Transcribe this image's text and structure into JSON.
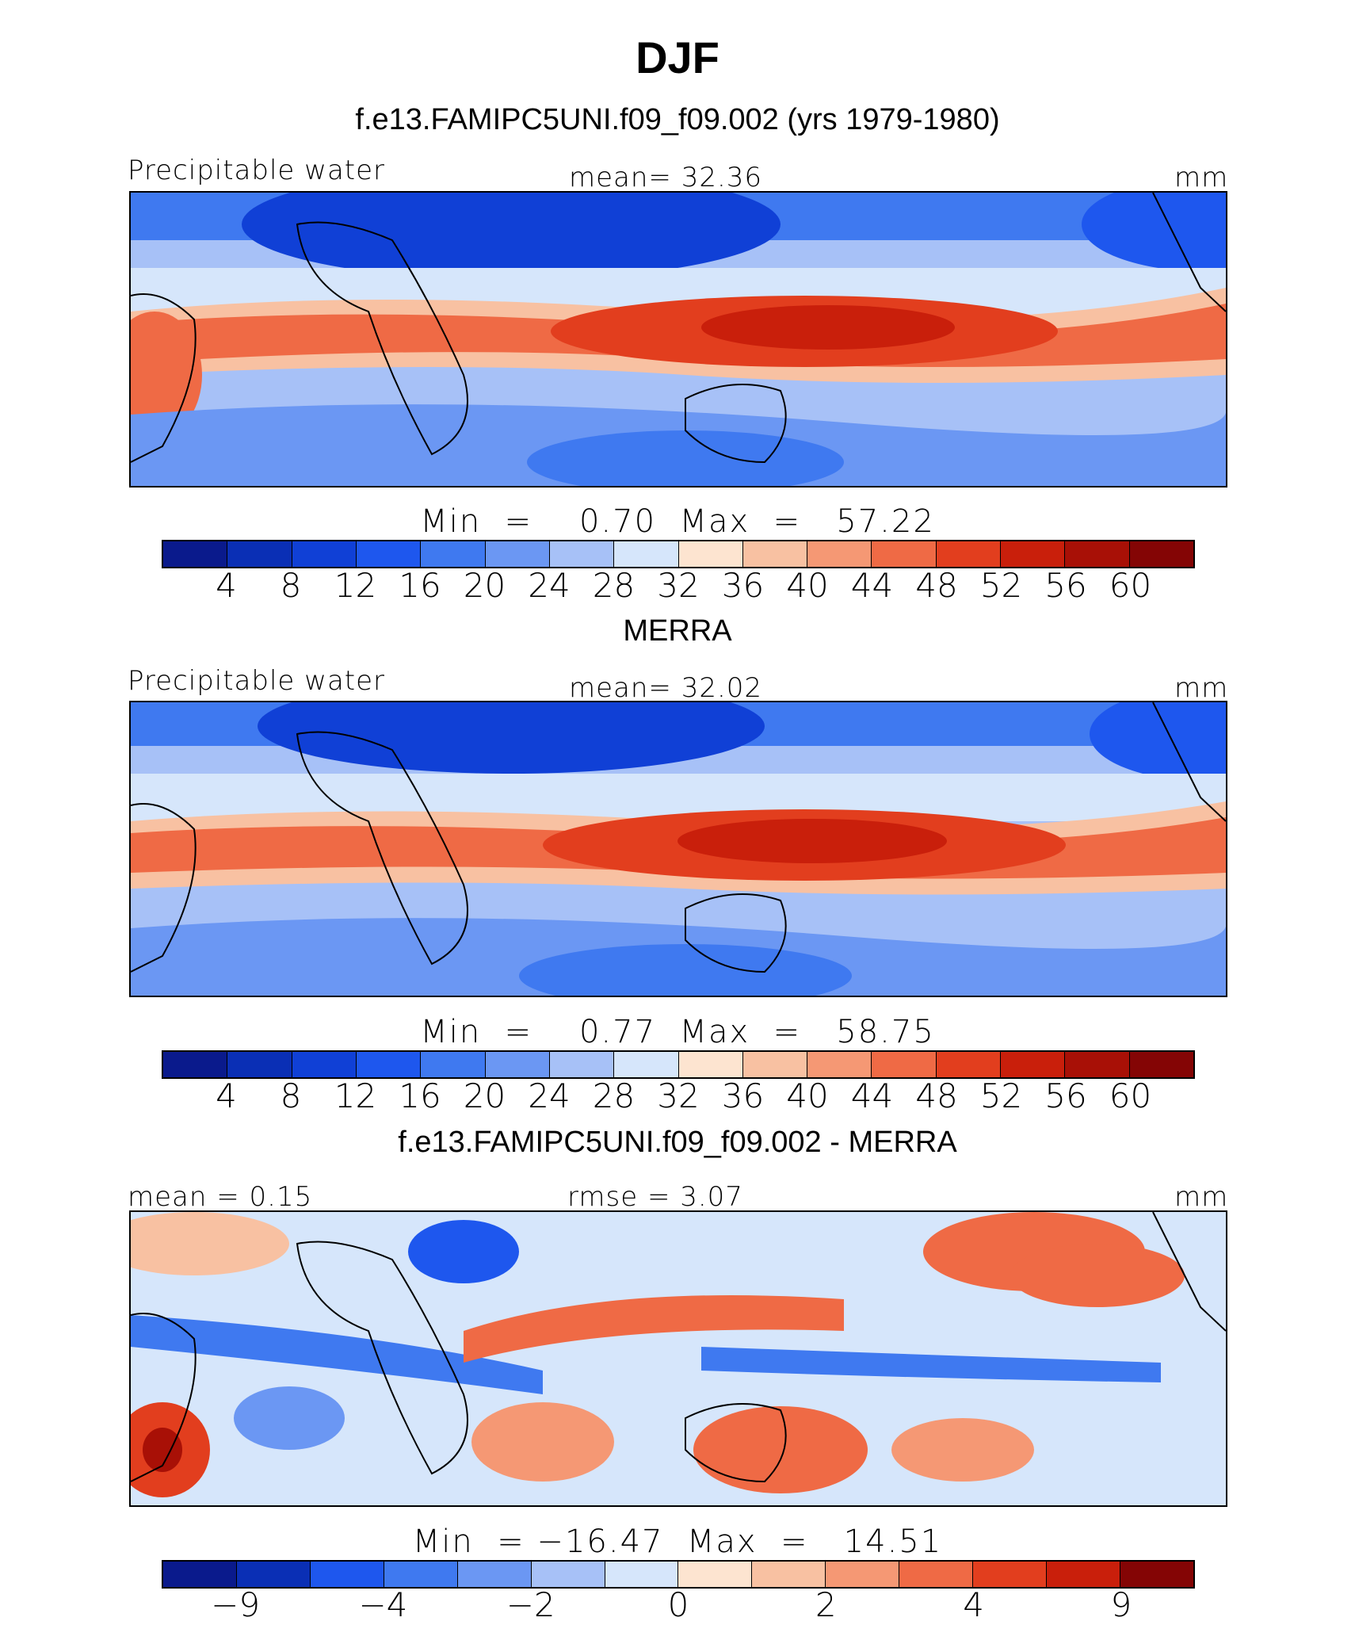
{
  "figure_title": "DJF",
  "panels": [
    {
      "title": "f.e13.FAMIPC5UNI.f09_f09.002 (yrs 1979-1980)",
      "left_label": "Precipitable water",
      "center_label": "mean=   32.36",
      "right_label": "mm",
      "stats": "Min  =    0.70  Max  =   57.22",
      "kind": "abs"
    },
    {
      "title": "MERRA",
      "left_label": "Precipitable water",
      "center_label": "mean=   32.02",
      "right_label": "mm",
      "stats": "Min  =    0.77  Max  =   58.75",
      "kind": "abs"
    },
    {
      "title": "f.e13.FAMIPC5UNI.f09_f09.002 - MERRA",
      "left_label": "mean  =    0.15",
      "center_label": "rmse  =    3.07",
      "right_label": "mm",
      "stats": "Min  = −16.47  Max  =   14.51",
      "kind": "diff"
    }
  ],
  "colorbars": {
    "abs": {
      "colors": [
        "#0a1a8c",
        "#0a2fb5",
        "#1040d6",
        "#1e57ee",
        "#3f79f0",
        "#6b97f3",
        "#a7c1f7",
        "#d6e6fb",
        "#fde4d0",
        "#f8c1a2",
        "#f59874",
        "#ef6a45",
        "#e23e1e",
        "#c91f0b",
        "#a81006",
        "#840505"
      ],
      "ticks": [
        "4",
        "8",
        "12",
        "16",
        "20",
        "24",
        "28",
        "32",
        "36",
        "40",
        "44",
        "48",
        "52",
        "56",
        "60"
      ]
    },
    "diff": {
      "colors": [
        "#0a1a8c",
        "#0a2fb5",
        "#1e57ee",
        "#3f79f0",
        "#6b97f3",
        "#a7c1f7",
        "#d6e6fb",
        "#fde4d0",
        "#f8c1a2",
        "#f59874",
        "#ef6a45",
        "#e23e1e",
        "#c91f0b",
        "#840505"
      ],
      "ticks": [
        "−9",
        "−4",
        "−2",
        "0",
        "2",
        "4",
        "9"
      ],
      "tick_positions": [
        1,
        3,
        5,
        7,
        9,
        11,
        13
      ]
    }
  }
}
